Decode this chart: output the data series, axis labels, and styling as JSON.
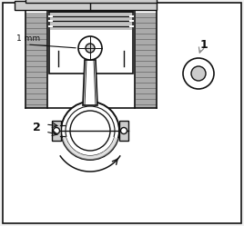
{
  "bg": "#f2f2f2",
  "white": "#ffffff",
  "black": "#111111",
  "gray_dark": "#555555",
  "gray_mid": "#888888",
  "gray_light": "#cccccc",
  "gray_fill": "#aaaaaa",
  "hatch_gray": "#999999",
  "label_1mm": "1 mm",
  "label_1": "1",
  "label_2": "2",
  "figsize": [
    2.68,
    2.49
  ],
  "dpi": 100
}
